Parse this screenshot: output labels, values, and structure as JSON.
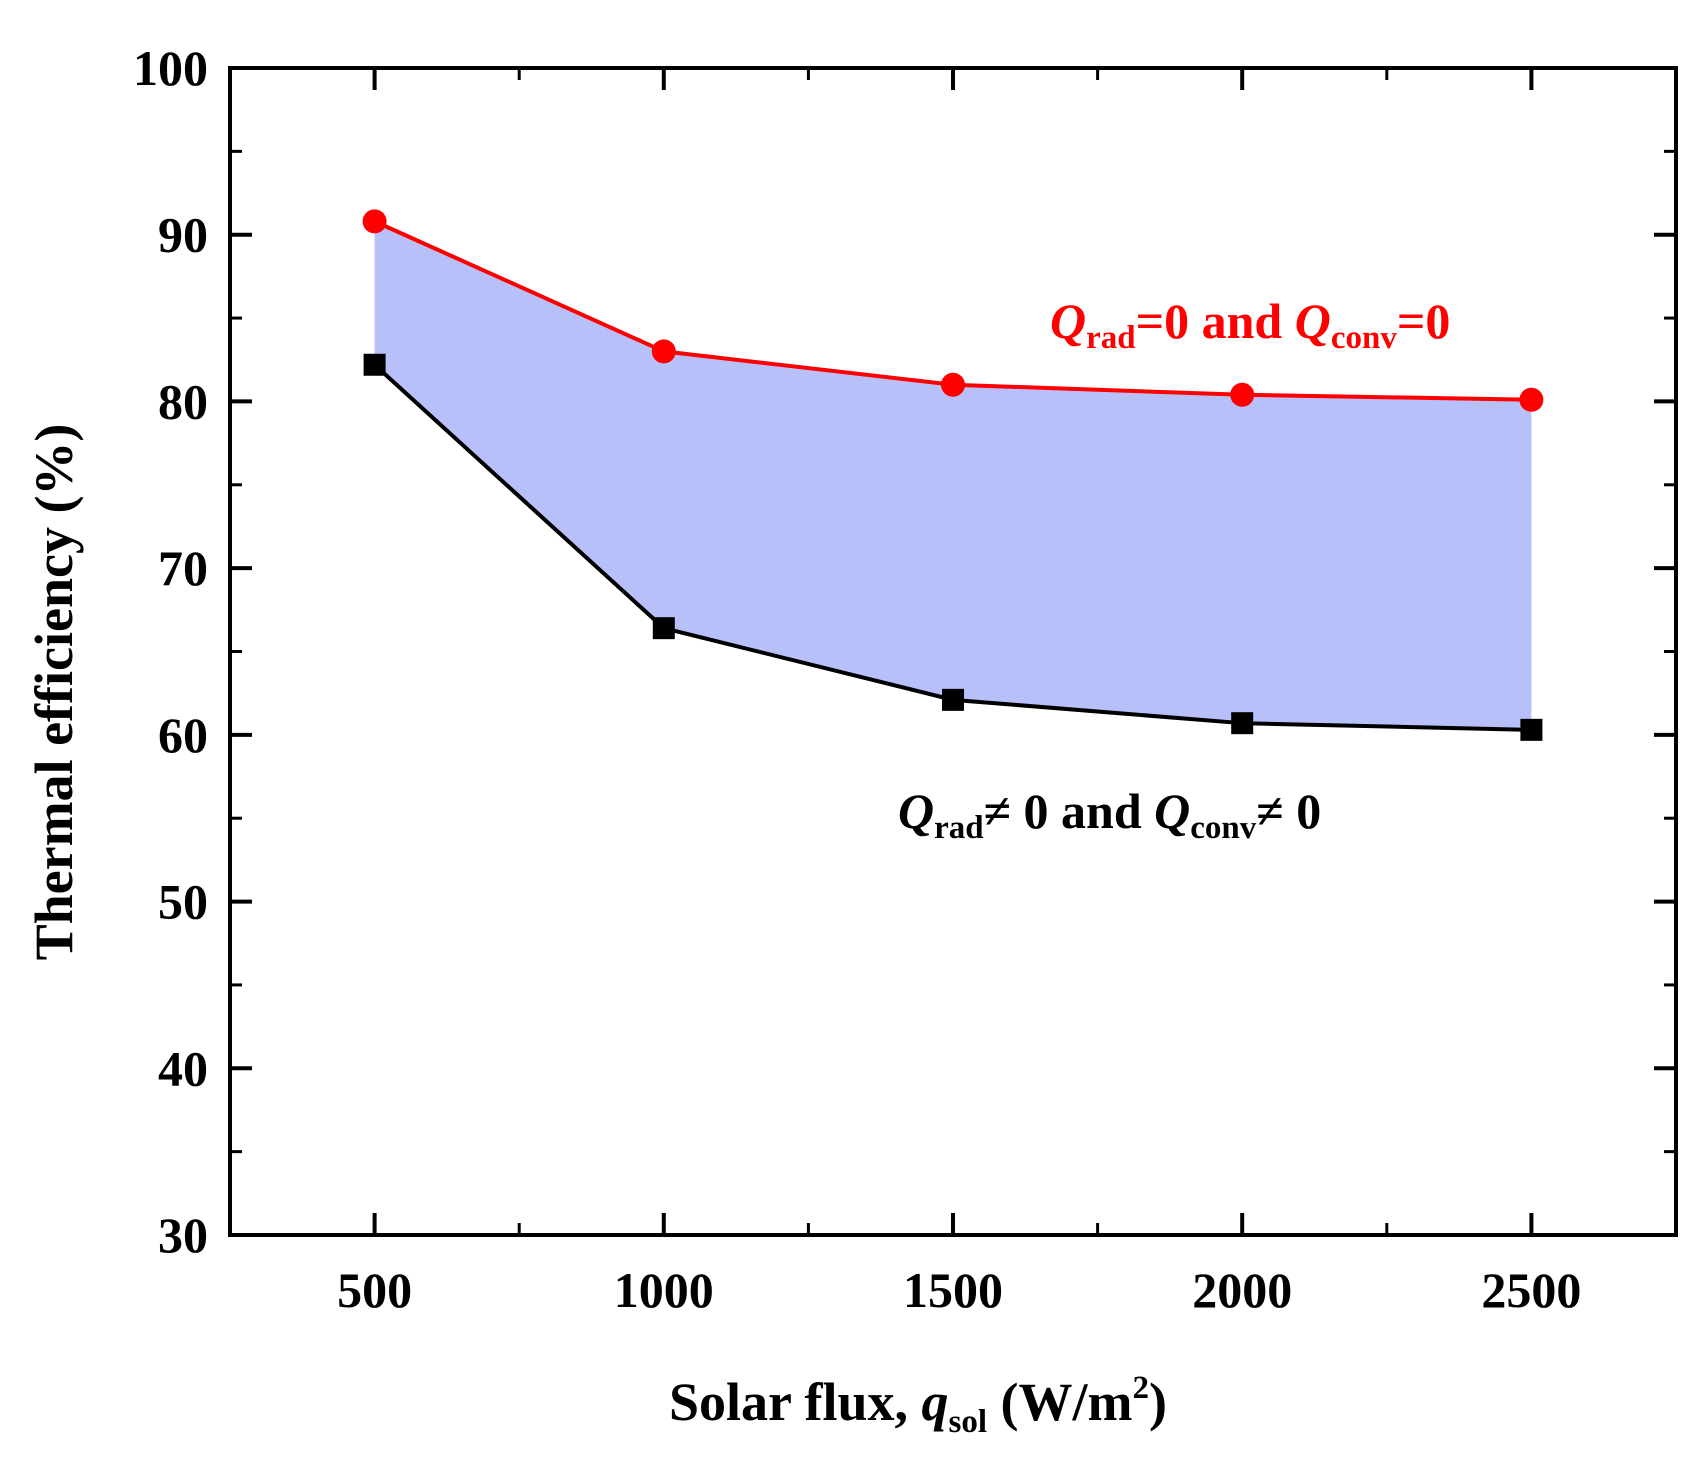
{
  "chart_data": {
    "type": "line",
    "title": "",
    "xlabel": {
      "prefix": "Solar flux, ",
      "var": "q",
      "sub": "sol",
      "units_open": " (W/m",
      "sup": "2",
      "units_close": ")"
    },
    "ylabel": "Thermal efficiency (%)",
    "xlim": [
      250,
      2750
    ],
    "ylim": [
      30,
      100
    ],
    "x_ticks": [
      500,
      1000,
      1500,
      2000,
      2500
    ],
    "x_ticks_minor": [
      750,
      1250,
      1750,
      2250
    ],
    "y_ticks": [
      30,
      40,
      50,
      60,
      70,
      80,
      90,
      100
    ],
    "y_ticks_minor": [
      35,
      45,
      55,
      65,
      75,
      85,
      95
    ],
    "x": [
      500,
      1000,
      1500,
      2000,
      2500
    ],
    "series": [
      {
        "name": "Qrad=0 and Qconv=0",
        "color": "#ff0000",
        "marker": "circle",
        "values": [
          90.8,
          83.0,
          81.0,
          80.4,
          80.1
        ]
      },
      {
        "name": "Qrad≠0 and Qconv≠0",
        "color": "#000000",
        "marker": "square",
        "values": [
          82.2,
          66.4,
          62.1,
          60.7,
          60.3
        ]
      }
    ],
    "fill_between": {
      "color": "#b8c0fa",
      "series": [
        0,
        1
      ]
    },
    "annotations": [
      {
        "q1": "Q",
        "sub1": "rad",
        "mid": "=0 and ",
        "q2": "Q",
        "sub2": "conv",
        "end": "=0",
        "color": "#ff0000"
      },
      {
        "q1": "Q",
        "sub1": "rad",
        "mid": "≠ 0 and ",
        "q2": "Q",
        "sub2": "conv",
        "end": "≠ 0",
        "color": "#000000"
      }
    ]
  }
}
